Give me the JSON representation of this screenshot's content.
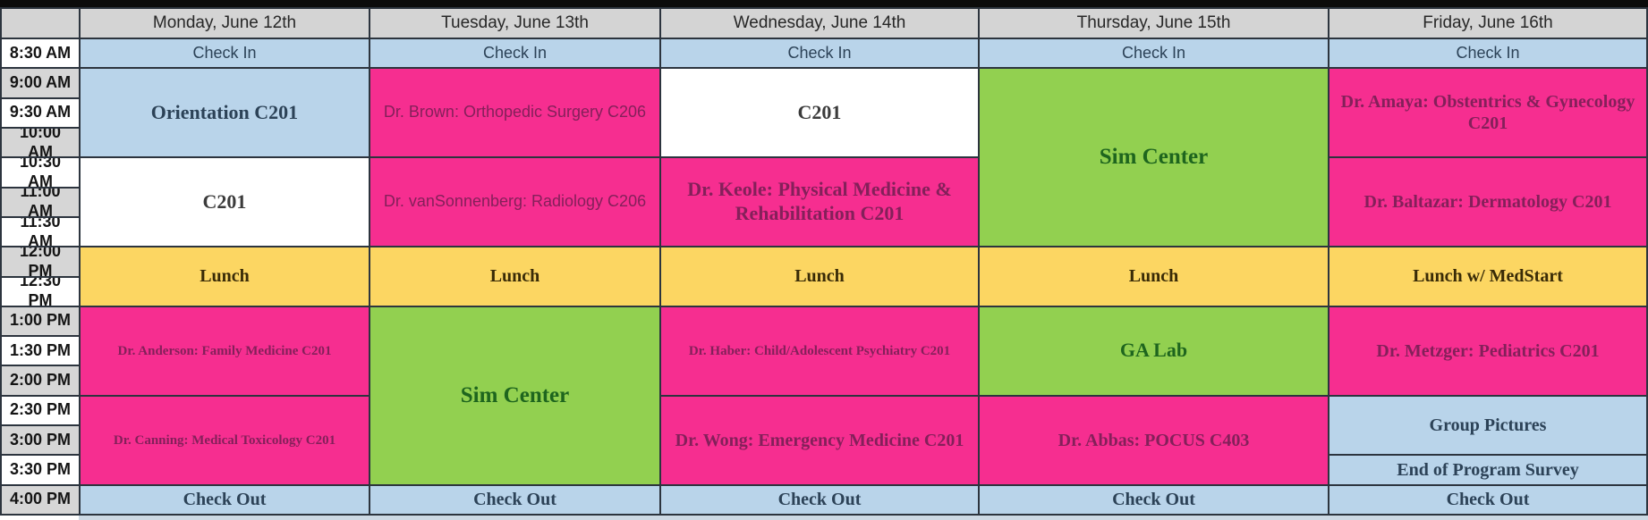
{
  "colors": {
    "grid_line": "#2c343e",
    "top_bar": "#0b0b0b",
    "header_bg": "#d4d4d4",
    "time_bg_light": "#ffffff",
    "time_bg_dark": "#d6d6d6",
    "blue": "#b9d4ea",
    "white": "#ffffff",
    "pink": "#f62e90",
    "green": "#92d050",
    "yellow": "#fcd662",
    "text_blue": "#2c4257",
    "text_white": "#3b3b3b",
    "text_pink": "#84205a",
    "text_green": "#1e651e",
    "text_yellow": "#392b07",
    "text_header": "#272727",
    "text_time": "#141414"
  },
  "schedule": {
    "corner_label": "",
    "day_headers": [
      "Monday, June 12th",
      "Tuesday, June 13th",
      "Wednesday, June 14th",
      "Thursday, June 15th",
      "Friday, June 16th"
    ],
    "day_shortnames": [
      "mon",
      "tue",
      "wed",
      "thu",
      "fri"
    ],
    "time_labels": [
      "8:30 AM",
      "9:00 AM",
      "9:30 AM",
      "10:00 AM",
      "10:30 AM",
      "11:00 AM",
      "11:30 AM",
      "12:00 PM",
      "12:30 PM",
      "1:00 PM",
      "1:30 PM",
      "2:00 PM",
      "2:30 PM",
      "3:00 PM",
      "3:30 PM",
      "4:00 PM"
    ],
    "events": [
      {
        "day": 0,
        "row": 0,
        "span": 1,
        "label": "Check In",
        "color": "blue",
        "font": "sans",
        "size": "sm",
        "weight": "n"
      },
      {
        "day": 0,
        "row": 1,
        "span": 3,
        "label": "Orientation C201",
        "color": "blue",
        "font": "serif",
        "size": "lg",
        "weight": "b"
      },
      {
        "day": 0,
        "row": 4,
        "span": 3,
        "label": "C201",
        "color": "white",
        "font": "serif",
        "size": "lg",
        "weight": "b"
      },
      {
        "day": 0,
        "row": 7,
        "span": 2,
        "label": "Lunch",
        "color": "yellow",
        "font": "serif",
        "size": "md",
        "weight": "b"
      },
      {
        "day": 0,
        "row": 9,
        "span": 3,
        "label": "Dr. Anderson: Family Medicine C201",
        "color": "pink",
        "font": "serif",
        "size": "xs",
        "weight": "b"
      },
      {
        "day": 0,
        "row": 12,
        "span": 3,
        "label": "Dr. Canning: Medical Toxicology C201",
        "color": "pink",
        "font": "serif",
        "size": "xs",
        "weight": "b"
      },
      {
        "day": 0,
        "row": 15,
        "span": 1,
        "label": "Check Out",
        "color": "blue",
        "font": "serif",
        "size": "md",
        "weight": "b"
      },
      {
        "day": 1,
        "row": 0,
        "span": 1,
        "label": "Check In",
        "color": "blue",
        "font": "sans",
        "size": "sm",
        "weight": "n"
      },
      {
        "day": 1,
        "row": 1,
        "span": 3,
        "label": "Dr. Brown: Orthopedic Surgery C206",
        "color": "pink",
        "font": "sans",
        "size": "sm",
        "weight": "n"
      },
      {
        "day": 1,
        "row": 4,
        "span": 3,
        "label": "Dr. vanSonnenberg: Radiology C206",
        "color": "pink",
        "font": "sans",
        "size": "sm",
        "weight": "n"
      },
      {
        "day": 1,
        "row": 7,
        "span": 2,
        "label": "Lunch",
        "color": "yellow",
        "font": "serif",
        "size": "md",
        "weight": "b"
      },
      {
        "day": 1,
        "row": 9,
        "span": 6,
        "label": "Sim Center",
        "color": "green",
        "font": "serif",
        "size": "xl",
        "weight": "b"
      },
      {
        "day": 1,
        "row": 15,
        "span": 1,
        "label": "Check Out",
        "color": "blue",
        "font": "serif",
        "size": "md",
        "weight": "b"
      },
      {
        "day": 2,
        "row": 0,
        "span": 1,
        "label": "Check In",
        "color": "blue",
        "font": "sans",
        "size": "sm",
        "weight": "n"
      },
      {
        "day": 2,
        "row": 1,
        "span": 3,
        "label": "C201",
        "color": "white",
        "font": "serif",
        "size": "lg",
        "weight": "b"
      },
      {
        "day": 2,
        "row": 4,
        "span": 3,
        "label": "Dr. Keole: Physical Medicine & Rehabilitation C201",
        "color": "pink",
        "font": "serif",
        "size": "lg",
        "weight": "b"
      },
      {
        "day": 2,
        "row": 7,
        "span": 2,
        "label": "Lunch",
        "color": "yellow",
        "font": "serif",
        "size": "md",
        "weight": "b"
      },
      {
        "day": 2,
        "row": 9,
        "span": 3,
        "label": "Dr. Haber: Child/Adolescent Psychiatry C201",
        "color": "pink",
        "font": "serif",
        "size": "xs",
        "weight": "b"
      },
      {
        "day": 2,
        "row": 12,
        "span": 3,
        "label": "Dr. Wong: Emergency Medicine C201",
        "color": "pink",
        "font": "serif",
        "size": "md",
        "weight": "b"
      },
      {
        "day": 2,
        "row": 15,
        "span": 1,
        "label": "Check Out",
        "color": "blue",
        "font": "serif",
        "size": "md",
        "weight": "b"
      },
      {
        "day": 3,
        "row": 0,
        "span": 1,
        "label": "Check In",
        "color": "blue",
        "font": "sans",
        "size": "sm",
        "weight": "n"
      },
      {
        "day": 3,
        "row": 1,
        "span": 6,
        "label": "Sim Center",
        "color": "green",
        "font": "serif",
        "size": "xl",
        "weight": "b"
      },
      {
        "day": 3,
        "row": 7,
        "span": 2,
        "label": "Lunch",
        "color": "yellow",
        "font": "serif",
        "size": "md",
        "weight": "b"
      },
      {
        "day": 3,
        "row": 9,
        "span": 3,
        "label": "GA Lab",
        "color": "green",
        "font": "serif",
        "size": "lg",
        "weight": "b"
      },
      {
        "day": 3,
        "row": 12,
        "span": 3,
        "label": "Dr. Abbas: POCUS C403",
        "color": "pink",
        "font": "serif",
        "size": "md",
        "weight": "b"
      },
      {
        "day": 3,
        "row": 15,
        "span": 1,
        "label": "Check Out",
        "color": "blue",
        "font": "serif",
        "size": "md",
        "weight": "b"
      },
      {
        "day": 4,
        "row": 0,
        "span": 1,
        "label": "Check In",
        "color": "blue",
        "font": "sans",
        "size": "sm",
        "weight": "n"
      },
      {
        "day": 4,
        "row": 1,
        "span": 3,
        "label": "Dr. Amaya: Obstentrics & Gynecology C201",
        "color": "pink",
        "font": "serif",
        "size": "md",
        "weight": "b"
      },
      {
        "day": 4,
        "row": 4,
        "span": 3,
        "label": "Dr. Baltazar: Dermatology C201",
        "color": "pink",
        "font": "serif",
        "size": "md",
        "weight": "b"
      },
      {
        "day": 4,
        "row": 7,
        "span": 2,
        "label": "Lunch w/ MedStart",
        "color": "yellow",
        "font": "serif",
        "size": "md",
        "weight": "b"
      },
      {
        "day": 4,
        "row": 9,
        "span": 3,
        "label": "Dr. Metzger: Pediatrics C201",
        "color": "pink",
        "font": "serif",
        "size": "md",
        "weight": "b"
      },
      {
        "day": 4,
        "row": 12,
        "span": 2,
        "label": "Group Pictures",
        "color": "blue",
        "font": "serif",
        "size": "md",
        "weight": "b"
      },
      {
        "day": 4,
        "row": 14,
        "span": 1,
        "label": "End of Program Survey",
        "color": "blue",
        "font": "serif",
        "size": "md",
        "weight": "b"
      },
      {
        "day": 4,
        "row": 15,
        "span": 1,
        "label": "Check Out",
        "color": "blue",
        "font": "serif",
        "size": "md",
        "weight": "b"
      }
    ]
  }
}
